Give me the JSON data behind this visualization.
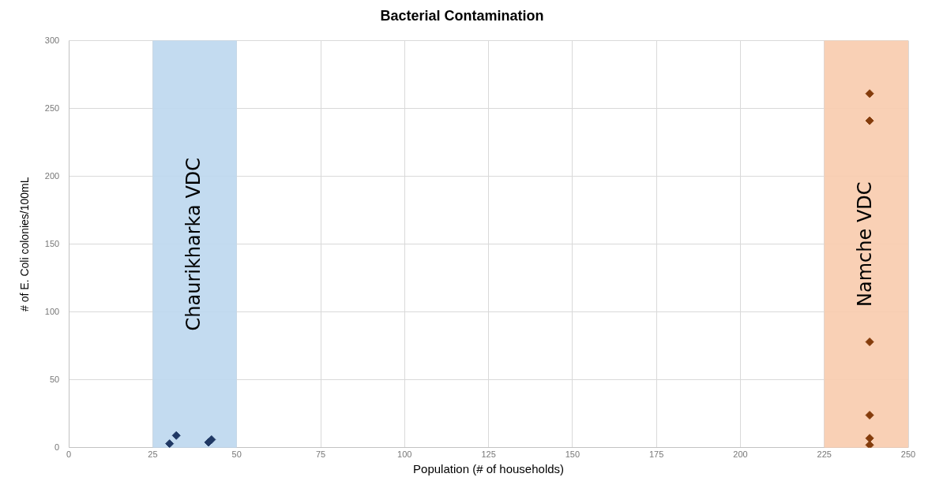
{
  "chart_data": {
    "type": "scatter",
    "title": "Bacterial Contamination",
    "xlabel": "Population (# of households)",
    "ylabel": "# of E. Coli colonies/100mL",
    "series": [
      {
        "color": "#1f3864",
        "x": [
          30,
          32,
          41.6,
          42.5
        ],
        "values": [
          3,
          9,
          4,
          6
        ]
      },
      {
        "color": "#843c0c",
        "x": [
          238.5,
          238.5,
          238.5,
          238.5,
          238.5,
          238.5
        ],
        "values": [
          261,
          241,
          78,
          24,
          7,
          2
        ]
      }
    ],
    "bands": [
      {
        "axis": "x",
        "from": 25,
        "to": 50,
        "label": "Chaurikharka VDC",
        "color": "#bdd7ee"
      },
      {
        "axis": "x",
        "from": 225,
        "to": 250,
        "label": "Namche VDC",
        "color": "#f8cbad"
      }
    ],
    "xlim": [
      0,
      250
    ],
    "xticks": [
      0,
      25,
      50,
      75,
      100,
      125,
      150,
      175,
      200,
      225,
      250
    ],
    "ylim": [
      0,
      300
    ],
    "yticks": [
      0,
      50,
      100,
      150,
      200,
      250,
      300
    ],
    "grid": true,
    "legend": false,
    "marker": "diamond"
  }
}
